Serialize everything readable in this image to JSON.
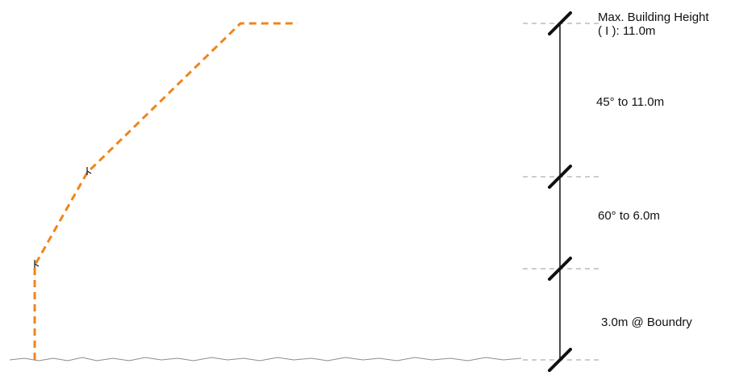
{
  "labels": {
    "max_height_line1": "Max. Building Height",
    "max_height_line2": "( I ): 11.0m",
    "angle_45": "45° to 11.0m",
    "angle_60": "60° to 6.0m",
    "boundary": "3.0m @ Boundry"
  },
  "colors": {
    "envelope": "#f08519",
    "dimension": "#111111",
    "guide": "#9a9a9a",
    "ground": "#8c8c8c"
  }
}
